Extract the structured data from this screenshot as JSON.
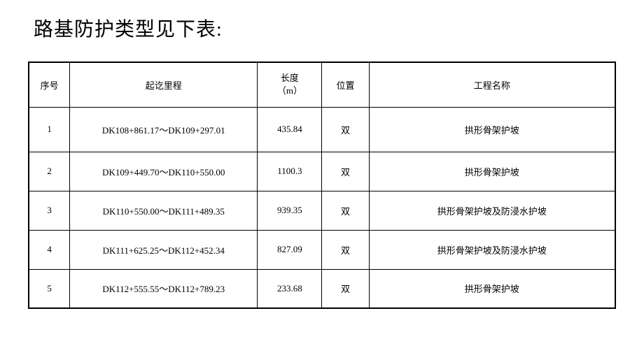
{
  "title": "路基防护类型见下表:",
  "headers": {
    "seq": "序号",
    "range": "起讫里程",
    "length_line1": "长度",
    "length_line2": "（m）",
    "position": "位置",
    "project": "工程名称"
  },
  "rows": [
    {
      "seq": "1",
      "range": "DK108+861.17～DK109+297.01",
      "length": "435.84",
      "position": "双",
      "project": "拱形骨架护坡"
    },
    {
      "seq": "2",
      "range": "DK109+449.70～DK110+550.00",
      "length": "1100.3",
      "position": "双",
      "project": "拱形骨架护坡"
    },
    {
      "seq": "3",
      "range": "DK110+550.00～DK111+489.35",
      "length": "939.35",
      "position": "双",
      "project": "拱形骨架护坡及防浸水护坡"
    },
    {
      "seq": "4",
      "range": "DK111+625.25～DK112+452.34",
      "length": "827.09",
      "position": "双",
      "project": "拱形骨架护坡及防浸水护坡"
    },
    {
      "seq": "5",
      "range": "DK112+555.55～DK112+789.23",
      "length": "233.68",
      "position": "双",
      "project": "拱形骨架护坡"
    }
  ]
}
